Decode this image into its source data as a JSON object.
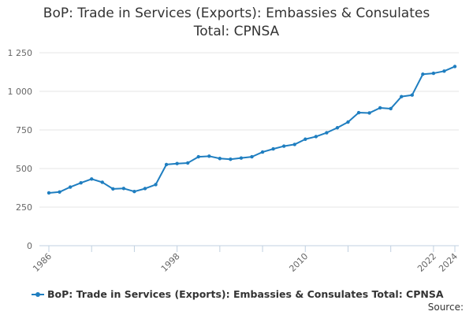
{
  "title_line1": "BoP: Trade in Services (Exports): Embassies & Consulates",
  "title_line2": "Total: CPNSA",
  "source_label": "Source:",
  "colors": {
    "series": "#1f7ec0",
    "grid": "#e6e6e6",
    "axis": "#c0d0e0",
    "text": "#333333"
  },
  "chart_data": {
    "type": "line",
    "title": "BoP: Trade in Services (Exports): Embassies & Consulates Total: CPNSA",
    "xlabel": "",
    "ylabel": "",
    "xlim": [
      1986,
      2024
    ],
    "ylim": [
      0,
      1250
    ],
    "yticks": [
      0,
      250,
      500,
      750,
      1000,
      1250
    ],
    "ytick_labels": [
      "0",
      "250",
      "500",
      "750",
      "1 000",
      "1 250"
    ],
    "xtick_labels": [
      "1986",
      "1998",
      "2010",
      "2022",
      "2024"
    ],
    "xtick_values": [
      1986,
      1998,
      2010,
      2022,
      2024
    ],
    "grid": true,
    "legend_position": "bottom",
    "series": [
      {
        "name": "BoP: Trade in Services (Exports): Embassies & Consulates Total: CPNSA",
        "x": [
          1986,
          1987,
          1988,
          1989,
          1990,
          1991,
          1992,
          1993,
          1994,
          1995,
          1996,
          1997,
          1998,
          1999,
          2000,
          2001,
          2002,
          2003,
          2004,
          2005,
          2006,
          2007,
          2008,
          2009,
          2010,
          2011,
          2012,
          2013,
          2014,
          2015,
          2016,
          2017,
          2018,
          2019,
          2020,
          2021,
          2022,
          2023,
          2024
        ],
        "values": [
          342,
          348,
          380,
          407,
          432,
          411,
          368,
          371,
          351,
          370,
          396,
          526,
          532,
          536,
          576,
          580,
          565,
          560,
          568,
          576,
          607,
          627,
          645,
          656,
          690,
          707,
          732,
          764,
          801,
          862,
          860,
          893,
          888,
          966,
          976,
          1111,
          1117,
          1131,
          1161
        ]
      }
    ]
  }
}
